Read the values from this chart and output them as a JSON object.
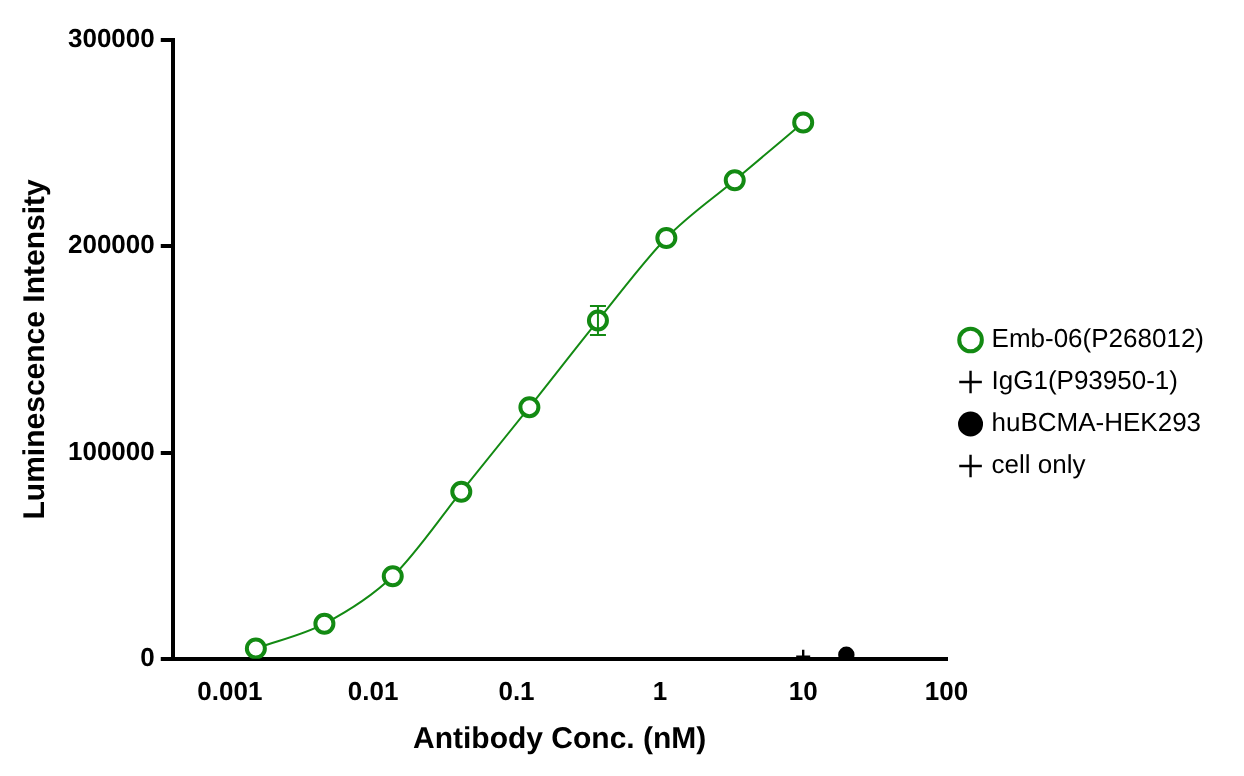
{
  "chart_data": {
    "type": "line",
    "xlabel": "Antibody Conc. (nM)",
    "ylabel": "Luminescence Intensity",
    "log": "x",
    "xlim": [
      0.0004,
      100
    ],
    "xticks": [
      0.001,
      0.01,
      0.1,
      1,
      10,
      100
    ],
    "ylim": [
      0,
      300000
    ],
    "yticks": [
      0,
      100000,
      200000,
      300000
    ],
    "grid": false,
    "legend": "right",
    "series": [
      {
        "name": "Emb-06(P268012)",
        "color": "#138a13",
        "marker": "circle",
        "x": [
          0.00152,
          0.00457,
          0.0137,
          0.0412,
          0.123,
          0.37,
          1.11,
          3.33,
          10
        ],
        "values": [
          5000,
          17000,
          40000,
          81000,
          122000,
          164000,
          204000,
          232000,
          260000
        ],
        "errors": [
          null,
          null,
          null,
          null,
          null,
          7000,
          null,
          null,
          null
        ]
      },
      {
        "name": "IgG1(P93950-1)",
        "color": "#000000",
        "marker": "cross",
        "x": [
          10
        ],
        "values": [
          1000
        ]
      },
      {
        "name": "huBCMA-HEK293",
        "color": "#000000",
        "marker": "circle",
        "x": [
          20
        ],
        "values": [
          2000
        ]
      },
      {
        "name": "cell only",
        "color": "#000000",
        "marker": "cross"
      }
    ]
  }
}
